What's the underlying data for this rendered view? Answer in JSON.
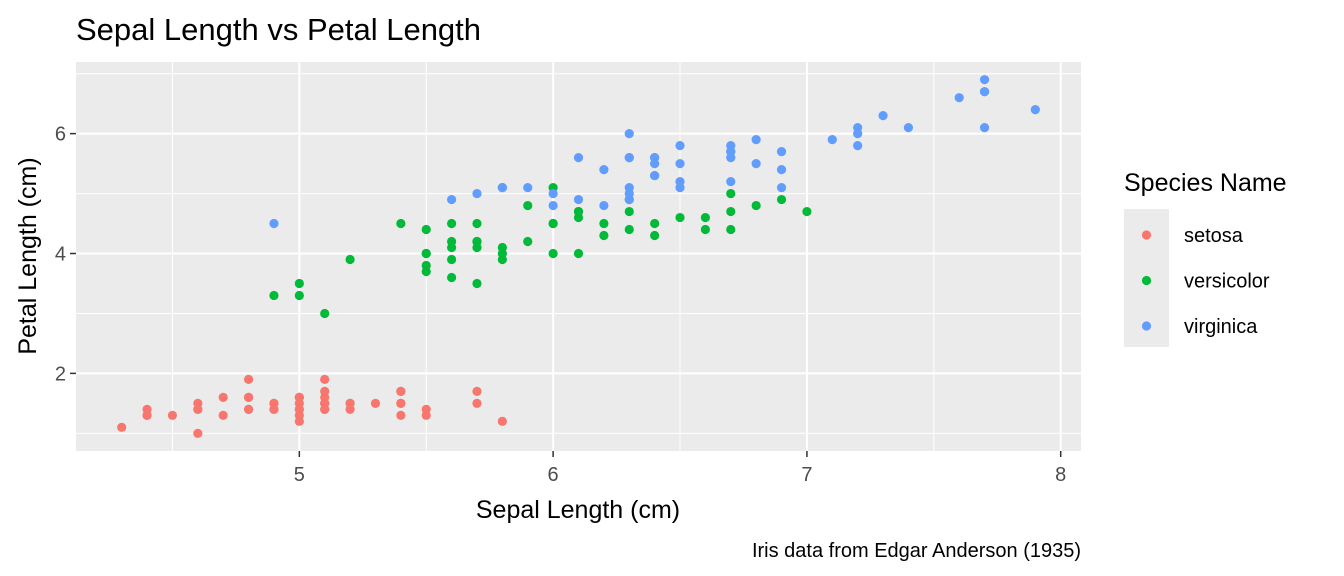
{
  "chart_data": {
    "type": "scatter",
    "title": "Sepal Length vs Petal Length",
    "xlabel": "Sepal Length (cm)",
    "ylabel": "Petal Length (cm)",
    "caption": "Iris data from Edgar Anderson (1935)",
    "xlim": [
      4.12,
      8.08
    ],
    "ylim": [
      0.705,
      7.195
    ],
    "x_ticks": [
      {
        "value": 5,
        "label": "5"
      },
      {
        "value": 6,
        "label": "6"
      },
      {
        "value": 7,
        "label": "7"
      },
      {
        "value": 8,
        "label": "8"
      }
    ],
    "y_ticks": [
      {
        "value": 2,
        "label": "2"
      },
      {
        "value": 4,
        "label": "4"
      },
      {
        "value": 6,
        "label": "6"
      }
    ],
    "x_minor": [
      4.5,
      5.5,
      6.5,
      7.5
    ],
    "y_minor": [
      1,
      3,
      5,
      7
    ],
    "grid": true,
    "legend": {
      "title": "Species Name",
      "position": "right"
    },
    "series": [
      {
        "name": "setosa",
        "color": "#F8766D",
        "points": [
          [
            5.1,
            1.4
          ],
          [
            4.9,
            1.4
          ],
          [
            4.7,
            1.3
          ],
          [
            4.6,
            1.5
          ],
          [
            5.0,
            1.4
          ],
          [
            5.4,
            1.7
          ],
          [
            4.6,
            1.4
          ],
          [
            5.0,
            1.5
          ],
          [
            4.4,
            1.4
          ],
          [
            4.9,
            1.5
          ],
          [
            5.4,
            1.5
          ],
          [
            4.8,
            1.6
          ],
          [
            4.8,
            1.4
          ],
          [
            4.3,
            1.1
          ],
          [
            5.8,
            1.2
          ],
          [
            5.7,
            1.5
          ],
          [
            5.4,
            1.3
          ],
          [
            5.1,
            1.4
          ],
          [
            5.7,
            1.7
          ],
          [
            5.1,
            1.5
          ],
          [
            5.4,
            1.7
          ],
          [
            5.1,
            1.5
          ],
          [
            4.6,
            1.0
          ],
          [
            5.1,
            1.7
          ],
          [
            4.8,
            1.9
          ],
          [
            5.0,
            1.6
          ],
          [
            5.0,
            1.6
          ],
          [
            5.2,
            1.5
          ],
          [
            5.2,
            1.4
          ],
          [
            4.7,
            1.6
          ],
          [
            4.8,
            1.6
          ],
          [
            5.4,
            1.5
          ],
          [
            5.2,
            1.5
          ],
          [
            5.5,
            1.4
          ],
          [
            4.9,
            1.5
          ],
          [
            5.0,
            1.2
          ],
          [
            5.5,
            1.3
          ],
          [
            4.9,
            1.4
          ],
          [
            4.4,
            1.3
          ],
          [
            5.1,
            1.5
          ],
          [
            5.0,
            1.3
          ],
          [
            4.5,
            1.3
          ],
          [
            4.4,
            1.3
          ],
          [
            5.0,
            1.6
          ],
          [
            5.1,
            1.9
          ],
          [
            4.8,
            1.4
          ],
          [
            5.1,
            1.6
          ],
          [
            4.6,
            1.4
          ],
          [
            5.3,
            1.5
          ],
          [
            5.0,
            1.4
          ]
        ]
      },
      {
        "name": "versicolor",
        "color": "#00BA38",
        "points": [
          [
            7.0,
            4.7
          ],
          [
            6.4,
            4.5
          ],
          [
            6.9,
            4.9
          ],
          [
            5.5,
            4.0
          ],
          [
            6.5,
            4.6
          ],
          [
            5.7,
            4.5
          ],
          [
            6.3,
            4.7
          ],
          [
            4.9,
            3.3
          ],
          [
            6.6,
            4.6
          ],
          [
            5.2,
            3.9
          ],
          [
            5.0,
            3.5
          ],
          [
            5.9,
            4.2
          ],
          [
            6.0,
            4.0
          ],
          [
            6.1,
            4.7
          ],
          [
            5.6,
            3.6
          ],
          [
            6.7,
            4.4
          ],
          [
            5.6,
            4.5
          ],
          [
            5.8,
            4.1
          ],
          [
            6.2,
            4.5
          ],
          [
            5.6,
            3.9
          ],
          [
            5.9,
            4.8
          ],
          [
            6.1,
            4.0
          ],
          [
            6.3,
            4.9
          ],
          [
            6.1,
            4.7
          ],
          [
            6.4,
            4.3
          ],
          [
            6.6,
            4.4
          ],
          [
            6.8,
            4.8
          ],
          [
            6.7,
            5.0
          ],
          [
            6.0,
            4.5
          ],
          [
            5.7,
            3.5
          ],
          [
            5.5,
            3.8
          ],
          [
            5.5,
            3.7
          ],
          [
            5.8,
            3.9
          ],
          [
            6.0,
            5.1
          ],
          [
            5.4,
            4.5
          ],
          [
            6.0,
            4.5
          ],
          [
            6.7,
            4.7
          ],
          [
            6.3,
            4.4
          ],
          [
            5.6,
            4.1
          ],
          [
            5.5,
            4.0
          ],
          [
            5.5,
            4.4
          ],
          [
            6.1,
            4.6
          ],
          [
            5.8,
            4.0
          ],
          [
            5.0,
            3.3
          ],
          [
            5.6,
            4.2
          ],
          [
            5.7,
            4.2
          ],
          [
            5.7,
            4.2
          ],
          [
            6.2,
            4.3
          ],
          [
            5.1,
            3.0
          ],
          [
            5.7,
            4.1
          ]
        ]
      },
      {
        "name": "virginica",
        "color": "#619CFF",
        "points": [
          [
            6.3,
            6.0
          ],
          [
            5.8,
            5.1
          ],
          [
            7.1,
            5.9
          ],
          [
            6.3,
            5.6
          ],
          [
            6.5,
            5.8
          ],
          [
            7.6,
            6.6
          ],
          [
            4.9,
            4.5
          ],
          [
            7.3,
            6.3
          ],
          [
            6.7,
            5.8
          ],
          [
            7.2,
            6.1
          ],
          [
            6.5,
            5.1
          ],
          [
            6.4,
            5.3
          ],
          [
            6.8,
            5.5
          ],
          [
            5.7,
            5.0
          ],
          [
            5.8,
            5.1
          ],
          [
            6.4,
            5.3
          ],
          [
            6.5,
            5.5
          ],
          [
            7.7,
            6.7
          ],
          [
            7.7,
            6.9
          ],
          [
            6.0,
            5.0
          ],
          [
            6.9,
            5.7
          ],
          [
            5.6,
            4.9
          ],
          [
            7.7,
            6.7
          ],
          [
            6.3,
            4.9
          ],
          [
            6.7,
            5.7
          ],
          [
            7.2,
            6.0
          ],
          [
            6.2,
            4.8
          ],
          [
            6.1,
            4.9
          ],
          [
            6.4,
            5.6
          ],
          [
            7.2,
            5.8
          ],
          [
            7.4,
            6.1
          ],
          [
            7.9,
            6.4
          ],
          [
            6.4,
            5.6
          ],
          [
            6.3,
            5.1
          ],
          [
            6.1,
            5.6
          ],
          [
            7.7,
            6.1
          ],
          [
            6.3,
            5.6
          ],
          [
            6.4,
            5.5
          ],
          [
            6.0,
            4.8
          ],
          [
            6.9,
            5.4
          ],
          [
            6.7,
            5.6
          ],
          [
            6.9,
            5.1
          ],
          [
            5.8,
            5.1
          ],
          [
            6.8,
            5.9
          ],
          [
            6.7,
            5.7
          ],
          [
            6.7,
            5.2
          ],
          [
            6.3,
            5.0
          ],
          [
            6.5,
            5.2
          ],
          [
            6.2,
            5.4
          ],
          [
            5.9,
            5.1
          ]
        ]
      }
    ]
  }
}
